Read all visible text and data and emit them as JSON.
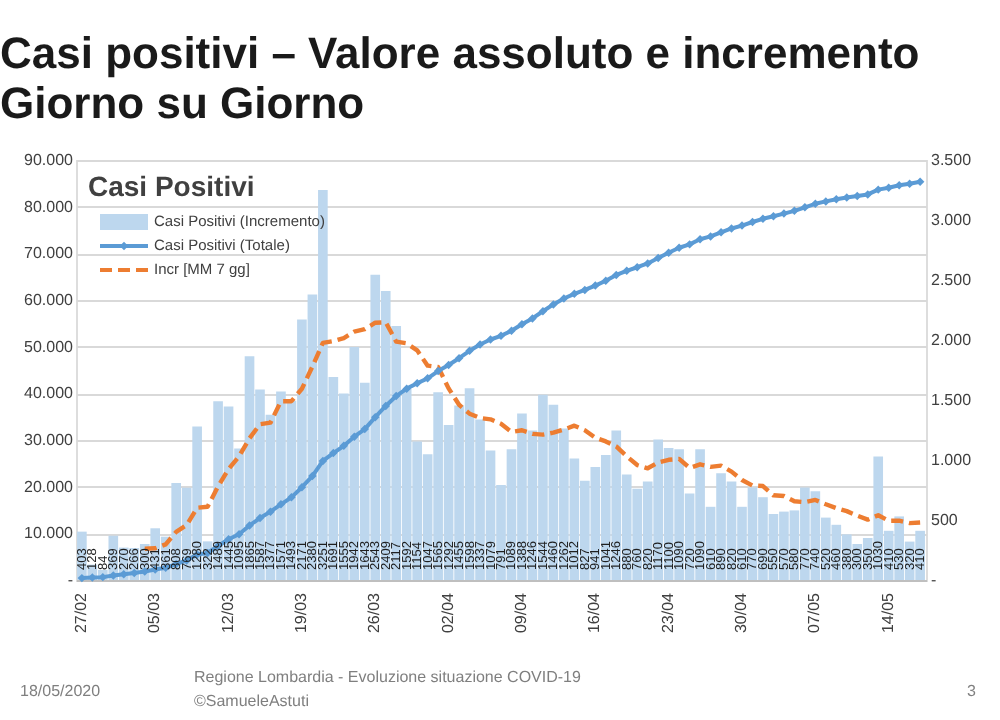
{
  "chart_data": {
    "type": "bar",
    "title": "Casi positivi – Valore assoluto e incremento Giorno su Giorno",
    "legend_title": "Casi Positivi",
    "legend": "top left",
    "grid": "y",
    "categories": [
      "27/02",
      null,
      null,
      null,
      null,
      null,
      null,
      "05/03",
      null,
      null,
      null,
      null,
      null,
      null,
      "12/03",
      null,
      null,
      null,
      null,
      null,
      null,
      "19/03",
      null,
      null,
      null,
      null,
      null,
      null,
      "26/03",
      null,
      null,
      null,
      null,
      null,
      null,
      "02/04",
      null,
      null,
      null,
      null,
      null,
      null,
      "09/04",
      null,
      null,
      null,
      null,
      null,
      null,
      "16/04",
      null,
      null,
      null,
      null,
      null,
      null,
      "23/04",
      null,
      null,
      null,
      null,
      null,
      null,
      "30/04",
      null,
      null,
      null,
      null,
      null,
      null,
      "07/05",
      null,
      null,
      null,
      null,
      null,
      null,
      "14/05",
      null,
      null,
      null
    ],
    "series": [
      {
        "name": "Casi Positivi (Incremento)",
        "data_labels": true,
        "axis": "y2",
        "color": "#bdd7ee",
        "values": [
          403,
          128,
          84,
          369,
          270,
          266,
          300,
          431,
          361,
          808,
          769,
          1280,
          322,
          1489,
          1445,
          1095,
          1865,
          1587,
          1377,
          1571,
          1493,
          2171,
          2380,
          3251,
          1691,
          1555,
          1942,
          1643,
          2543,
          2409,
          2117,
          1592,
          1154,
          1047,
          1565,
          1292,
          1455,
          1598,
          1337,
          1079,
          791,
          1089,
          1388,
          1246,
          1544,
          1460,
          1262,
          1012,
          827,
          941,
          1041,
          1246,
          880,
          760,
          820,
          1170,
          1100,
          1090,
          720,
          1090,
          610,
          890,
          820,
          610,
          770,
          690,
          550,
          570,
          580,
          770,
          740,
          520,
          460,
          380,
          300,
          350,
          1030,
          410,
          530,
          320,
          410
        ]
      },
      {
        "name": "Casi Positivi (Totale)",
        "type": "line",
        "color": "#5b9bd5",
        "marker": "diamond",
        "values": [
          403,
          531,
          615,
          984,
          1254,
          1520,
          1820,
          2251,
          2612,
          3420,
          4189,
          5469,
          5791,
          7280,
          8725,
          9820,
          11685,
          13272,
          14649,
          16220,
          17713,
          19884,
          22264,
          25515,
          27206,
          28761,
          30703,
          32346,
          34889,
          37298,
          39415,
          41007,
          42161,
          43208,
          44773,
          46065,
          47520,
          49118,
          50455,
          51534,
          52325,
          53414,
          54802,
          56048,
          57592,
          59052,
          60314,
          61326,
          62153,
          63094,
          64135,
          65381,
          66261,
          67021,
          67841,
          69011,
          70111,
          71201,
          71921,
          73011,
          73621,
          74511,
          75331,
          75941,
          76711,
          77401,
          77951,
          78521,
          79101,
          79871,
          80611,
          81131,
          81591,
          81971,
          82271,
          82621,
          83651,
          84061,
          84591,
          84911,
          85321
        ]
      },
      {
        "name": "Incr [MM 7 gg]",
        "type": "line",
        "axis": "y2",
        "color": "#ed7d31",
        "line_style": "dashed",
        "values": [
          null,
          null,
          null,
          null,
          null,
          null,
          260,
          264,
          297,
          401,
          458,
          602,
          610,
          780,
          925,
          1030,
          1181,
          1298,
          1311,
          1490,
          1490,
          1594,
          1778,
          1976,
          1991,
          2016,
          2069,
          2090,
          2144,
          2148,
          1986,
          1972,
          1914,
          1786,
          1775,
          1597,
          1460,
          1386,
          1350,
          1339,
          1302,
          1234,
          1248,
          1218,
          1211,
          1228,
          1254,
          1286,
          1248,
          1185,
          1155,
          1113,
          1030,
          958,
          931,
          980,
          1002,
          1009,
          934,
          964,
          943,
          953,
          903,
          833,
          787,
          783,
          706,
          700,
          656,
          649,
          667,
          631,
          599,
          574,
          536,
          503,
          540,
          493,
          494,
          474,
          479
        ]
      }
    ],
    "ylim": [
      0,
      90000
    ],
    "yticks": [
      {
        "value": 0,
        "label": "-"
      },
      {
        "value": 10000,
        "label": "10.000"
      },
      {
        "value": 20000,
        "label": "20.000"
      },
      {
        "value": 30000,
        "label": "30.000"
      },
      {
        "value": 40000,
        "label": "40.000"
      },
      {
        "value": 50000,
        "label": "50.000"
      },
      {
        "value": 60000,
        "label": "60.000"
      },
      {
        "value": 70000,
        "label": "70.000"
      },
      {
        "value": 80000,
        "label": "80.000"
      },
      {
        "value": 90000,
        "label": "90.000"
      }
    ],
    "y2lim": [
      0,
      3500
    ],
    "y2ticks": [
      {
        "value": 0,
        "label": "-"
      },
      500,
      {
        "value": 1000,
        "label": "1.000"
      },
      {
        "value": 1500,
        "label": "1.500"
      },
      {
        "value": 2000,
        "label": "2.000"
      },
      {
        "value": 2500,
        "label": "2.500"
      },
      {
        "value": 3000,
        "label": "3.000"
      },
      {
        "value": 3500,
        "label": "3.500"
      }
    ],
    "annotations": [
      "18/05/2020",
      "Regione Lombardia - Evoluzione situazione COVID-19",
      "©SamueleAstuti",
      "3"
    ]
  }
}
